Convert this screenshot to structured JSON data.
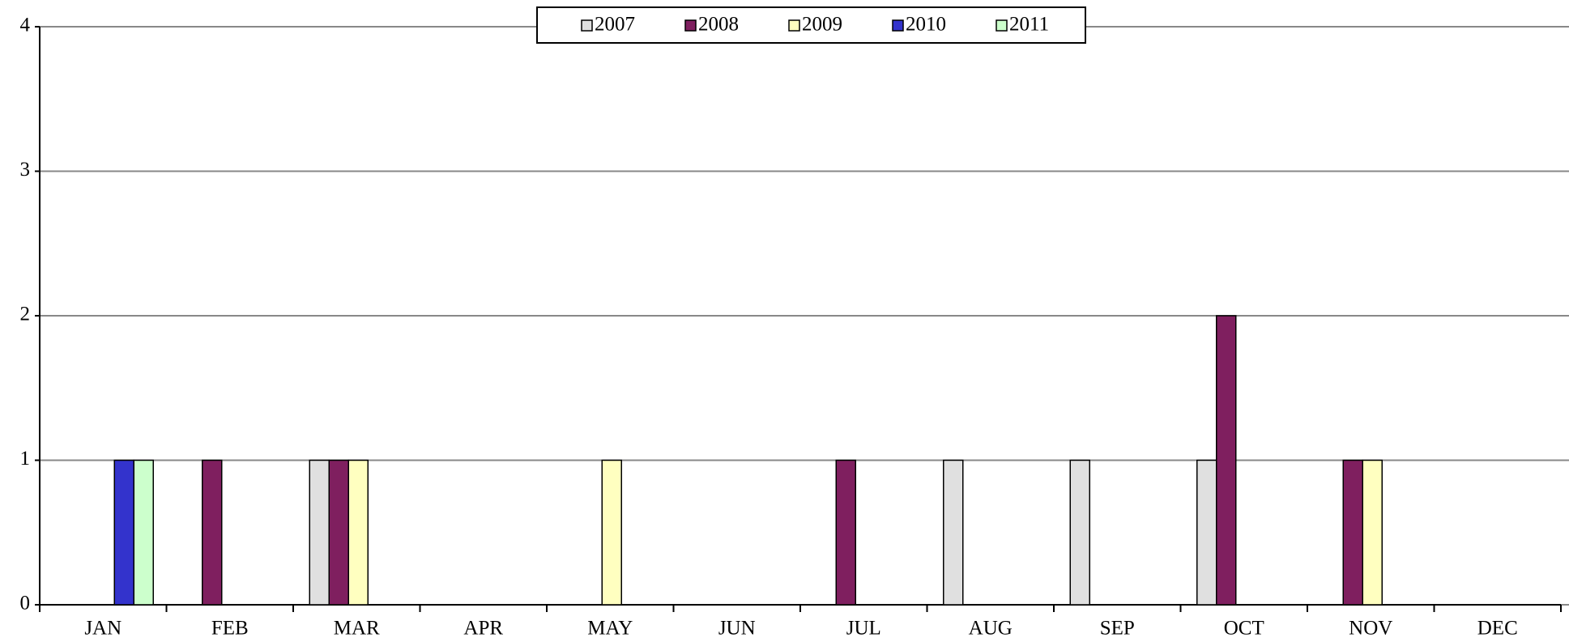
{
  "chart_data": {
    "type": "bar",
    "categories": [
      "JAN",
      "FEB",
      "MAR",
      "APR",
      "MAY",
      "JUN",
      "JUL",
      "AUG",
      "SEP",
      "OCT",
      "NOV",
      "DEC"
    ],
    "series": [
      {
        "name": "2007",
        "color": "#e0e0e0",
        "values": [
          0,
          0,
          1,
          0,
          0,
          0,
          0,
          1,
          1,
          1,
          0,
          0
        ]
      },
      {
        "name": "2008",
        "color": "#7f1f5f",
        "values": [
          0,
          1,
          1,
          0,
          0,
          0,
          1,
          0,
          0,
          2,
          1,
          0
        ]
      },
      {
        "name": "2009",
        "color": "#ffffc0",
        "values": [
          0,
          0,
          1,
          0,
          1,
          0,
          0,
          0,
          0,
          0,
          1,
          0
        ]
      },
      {
        "name": "2010",
        "color": "#3333cc",
        "values": [
          1,
          0,
          0,
          0,
          0,
          0,
          0,
          0,
          0,
          0,
          0,
          0
        ]
      },
      {
        "name": "2011",
        "color": "#ccffcc",
        "values": [
          1,
          0,
          0,
          0,
          0,
          0,
          0,
          0,
          0,
          0,
          0,
          0
        ]
      }
    ],
    "ylim": [
      0,
      4
    ],
    "yticks": [
      0,
      1,
      2,
      3,
      4
    ],
    "grid": true,
    "legend": "top"
  }
}
